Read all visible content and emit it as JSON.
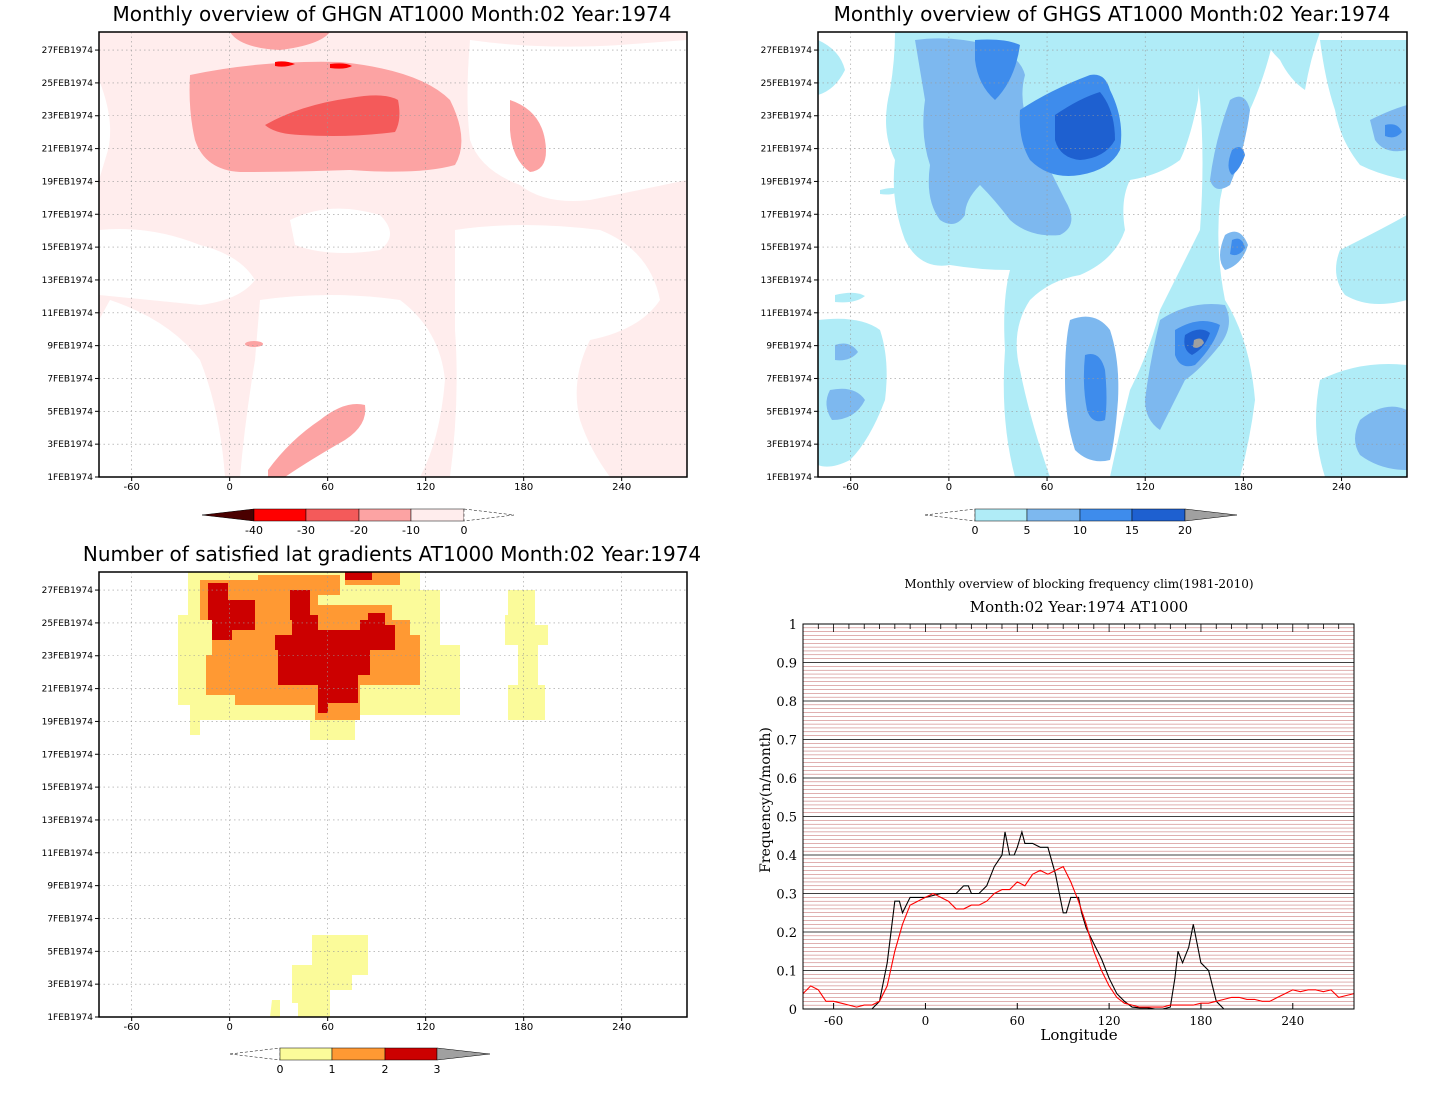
{
  "dates": [
    "1FEB1974",
    "3FEB1974",
    "5FEB1974",
    "7FEB1974",
    "9FEB1974",
    "11FEB1974",
    "13FEB1974",
    "15FEB1974",
    "17FEB1974",
    "19FEB1974",
    "21FEB1974",
    "23FEB1974",
    "25FEB1974",
    "27FEB1974"
  ],
  "lon_ticks": [
    "-60",
    "0",
    "60",
    "120",
    "180",
    "240"
  ],
  "colors": {
    "red": [
      "#4a0000",
      "#ff0000",
      "#f45a5a",
      "#fca3a3",
      "#ffeded",
      "#ffffff"
    ],
    "blue": [
      "#ffffff",
      "#b0ecf7",
      "#7db8ef",
      "#3e8cec",
      "#1e60d0",
      "#a0a0a0"
    ],
    "gold": [
      "#ffffff",
      "#fbfb9a",
      "#ff9933",
      "#cc0000",
      "#a0a0a0"
    ]
  },
  "chart_data": [
    {
      "type": "heatmap",
      "title": "Monthly overview of GHGN AT1000 Month:02 Year:1974",
      "x_ticks": [
        -60,
        0,
        60,
        120,
        180,
        240
      ],
      "y_ticks": [
        "1FEB1974",
        "3FEB1974",
        "5FEB1974",
        "7FEB1974",
        "9FEB1974",
        "11FEB1974",
        "13FEB1974",
        "15FEB1974",
        "17FEB1974",
        "19FEB1974",
        "21FEB1974",
        "23FEB1974",
        "25FEB1974",
        "27FEB1974"
      ],
      "colorbar_labels": [
        "-40",
        "-30",
        "-20",
        "-10",
        "0"
      ]
    },
    {
      "type": "heatmap",
      "title": "Monthly overview of GHGS AT1000 Month:02 Year:1974",
      "x_ticks": [
        -60,
        0,
        60,
        120,
        180,
        240
      ],
      "y_ticks": [
        "1FEB1974",
        "3FEB1974",
        "5FEB1974",
        "7FEB1974",
        "9FEB1974",
        "11FEB1974",
        "13FEB1974",
        "15FEB1974",
        "17FEB1974",
        "19FEB1974",
        "21FEB1974",
        "23FEB1974",
        "25FEB1974",
        "27FEB1974"
      ],
      "colorbar_labels": [
        "0",
        "5",
        "10",
        "15",
        "20"
      ]
    },
    {
      "type": "heatmap",
      "title": "Number of satisfied lat gradients AT1000 Month:02 Year:1974",
      "x_ticks": [
        -60,
        0,
        60,
        120,
        180,
        240
      ],
      "y_ticks": [
        "1FEB1974",
        "3FEB1974",
        "5FEB1974",
        "7FEB1974",
        "9FEB1974",
        "11FEB1974",
        "13FEB1974",
        "15FEB1974",
        "17FEB1974",
        "19FEB1974",
        "21FEB1974",
        "23FEB1974",
        "25FEB1974",
        "27FEB1974"
      ],
      "colorbar_labels": [
        "0",
        "1",
        "2",
        "3"
      ]
    },
    {
      "type": "line",
      "title": "Monthly overview of blocking frequency clim(1981-2010)",
      "subtitle": "Month:02 Year:1974  AT1000",
      "xlabel": "Longitude",
      "ylabel": "Frequency(n/month)",
      "xlim": [
        -80,
        280
      ],
      "ylim": [
        0,
        1
      ],
      "x_ticks": [
        -60,
        0,
        60,
        120,
        180,
        240
      ],
      "y_ticks": [
        0,
        0.1,
        0.2,
        0.3,
        0.4,
        0.5,
        0.6,
        0.7,
        0.8,
        0.9,
        1
      ],
      "y_tick_labels": [
        "0",
        "0.1",
        "0.2",
        "0.3",
        "0.4",
        "0.5",
        "0.6",
        "0.7",
        "0.8",
        "0.9",
        "1"
      ],
      "series": [
        {
          "color": "#000000",
          "x": [
            -80,
            -70,
            -60,
            -50,
            -40,
            -35,
            -30,
            -25,
            -20,
            -17,
            -15,
            -10,
            -5,
            0,
            10,
            20,
            25,
            28,
            30,
            35,
            40,
            45,
            50,
            52,
            55,
            58,
            60,
            63,
            65,
            70,
            75,
            80,
            85,
            88,
            90,
            92,
            95,
            100,
            102,
            105,
            110,
            115,
            120,
            125,
            130,
            135,
            140,
            145,
            150,
            155,
            160,
            163,
            165,
            168,
            170,
            172,
            175,
            180,
            185,
            190,
            195,
            200,
            210,
            220,
            230,
            240,
            250,
            260,
            270,
            280
          ],
          "y": [
            0,
            0,
            0,
            0,
            0,
            0,
            0.02,
            0.12,
            0.28,
            0.28,
            0.25,
            0.29,
            0.29,
            0.29,
            0.3,
            0.3,
            0.32,
            0.32,
            0.3,
            0.3,
            0.32,
            0.37,
            0.4,
            0.46,
            0.4,
            0.4,
            0.42,
            0.46,
            0.43,
            0.43,
            0.42,
            0.42,
            0.35,
            0.29,
            0.25,
            0.25,
            0.29,
            0.29,
            0.25,
            0.21,
            0.17,
            0.13,
            0.08,
            0.04,
            0.02,
            0.005,
            0.003,
            0.003,
            0,
            0,
            0.005,
            0.08,
            0.15,
            0.12,
            0.14,
            0.16,
            0.22,
            0.12,
            0.1,
            0.02,
            0,
            0,
            0,
            0,
            0,
            0,
            0,
            0,
            0,
            0
          ]
        },
        {
          "color": "#ff0000",
          "x": [
            -80,
            -75,
            -70,
            -65,
            -60,
            -55,
            -50,
            -45,
            -40,
            -35,
            -30,
            -25,
            -20,
            -15,
            -10,
            -5,
            0,
            5,
            10,
            15,
            20,
            25,
            30,
            35,
            40,
            45,
            50,
            55,
            60,
            65,
            70,
            75,
            80,
            85,
            90,
            95,
            100,
            105,
            110,
            115,
            120,
            125,
            130,
            135,
            140,
            145,
            150,
            155,
            160,
            165,
            170,
            175,
            180,
            185,
            190,
            195,
            200,
            205,
            210,
            215,
            220,
            225,
            230,
            235,
            240,
            245,
            250,
            255,
            260,
            265,
            270,
            275,
            280
          ],
          "y": [
            0.04,
            0.06,
            0.05,
            0.02,
            0.02,
            0.015,
            0.01,
            0.005,
            0.01,
            0.01,
            0.02,
            0.06,
            0.15,
            0.22,
            0.27,
            0.28,
            0.29,
            0.3,
            0.29,
            0.28,
            0.26,
            0.26,
            0.27,
            0.27,
            0.28,
            0.3,
            0.31,
            0.31,
            0.33,
            0.32,
            0.35,
            0.36,
            0.35,
            0.36,
            0.37,
            0.33,
            0.28,
            0.22,
            0.15,
            0.1,
            0.06,
            0.03,
            0.015,
            0.01,
            0.005,
            0.005,
            0.005,
            0.005,
            0.01,
            0.01,
            0.01,
            0.01,
            0.015,
            0.015,
            0.02,
            0.025,
            0.03,
            0.03,
            0.025,
            0.025,
            0.02,
            0.02,
            0.03,
            0.04,
            0.05,
            0.045,
            0.05,
            0.05,
            0.045,
            0.05,
            0.03,
            0.035,
            0.04
          ]
        }
      ]
    }
  ]
}
